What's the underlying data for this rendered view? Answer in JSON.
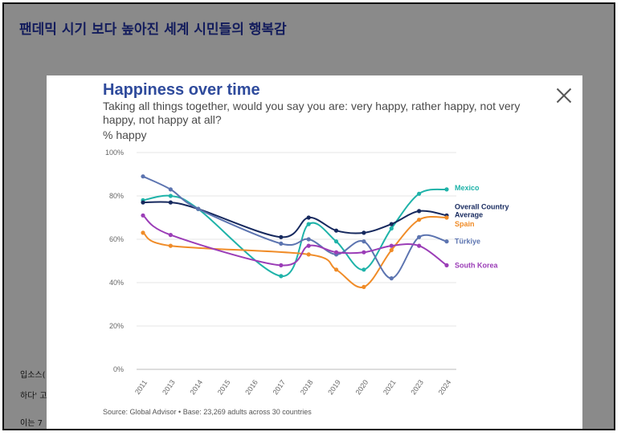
{
  "page": {
    "title": "팬데믹 시기 보다 높아진 세계 시민들의 행복감",
    "body_lines": [
      "입소스(",
      "하다' 고",
      "이는 7"
    ]
  },
  "modal": {
    "title": "Happiness over time",
    "subtitle": "Taking all things together, would you say you are: very happy, rather happy, not very happy, not happy at all?",
    "unit": "% happy",
    "source": "Source: Global Advisor • Base: 23,269 adults across 30 countries",
    "close_icon": "close-icon"
  },
  "chart_data": {
    "type": "line",
    "x": [
      "2011",
      "2013",
      "2014",
      "2015",
      "2016",
      "2017",
      "2018",
      "2019",
      "2020",
      "2021",
      "2023",
      "2024"
    ],
    "ylim": [
      0,
      100
    ],
    "yticks": [
      "0%",
      "20%",
      "40%",
      "60%",
      "80%",
      "100%"
    ],
    "grid": true,
    "series": [
      {
        "name": "Mexico",
        "color": "#1fb3a9",
        "values": [
          78,
          80,
          74,
          null,
          null,
          43,
          67,
          59,
          46,
          65,
          81,
          83
        ]
      },
      {
        "name": "Overall Country Average",
        "color": "#16295e",
        "values": [
          77,
          77,
          74,
          null,
          null,
          61,
          70,
          64,
          63,
          67,
          73,
          71
        ]
      },
      {
        "name": "Spain",
        "color": "#f08c28",
        "values": [
          63,
          57,
          null,
          null,
          null,
          null,
          53,
          46,
          38,
          55,
          69,
          70
        ]
      },
      {
        "name": "Türkiye",
        "color": "#5c74b0",
        "values": [
          89,
          83,
          74,
          null,
          null,
          58,
          60,
          53,
          59,
          42,
          61,
          59
        ]
      },
      {
        "name": "South Korea",
        "color": "#9b3db7",
        "values": [
          71,
          62,
          null,
          null,
          null,
          48,
          57,
          54,
          54,
          57,
          57,
          48
        ]
      }
    ]
  }
}
